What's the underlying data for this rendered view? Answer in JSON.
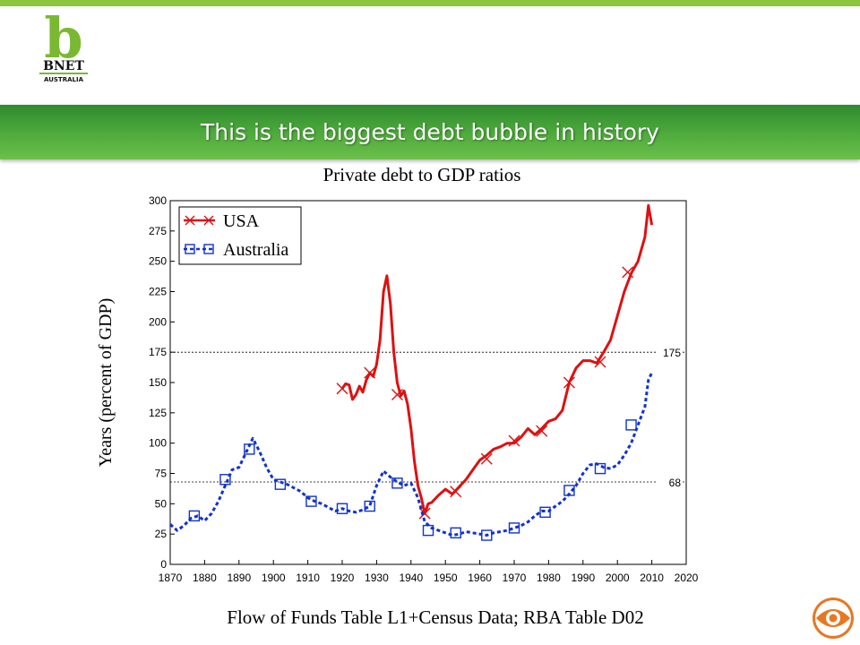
{
  "header": {
    "logo_letter": "b",
    "logo_name": "BNET",
    "logo_sub": "AUSTRALIA",
    "title": "This is the biggest debt bubble in history"
  },
  "colors": {
    "usa": "#dd1111",
    "australia": "#1133cc",
    "banner": "#4aa63a",
    "accent": "#8cc63f",
    "cbs": "#e87722"
  },
  "icons": {
    "bottom_right": "cbs-eye-icon"
  },
  "chart_data": {
    "type": "line",
    "title": "Private debt to GDP ratios",
    "xlabel": "Flow of Funds Table L1+Census Data; RBA Table D02",
    "ylabel": "Years (percent of GDP)",
    "xlim": [
      1870,
      2020
    ],
    "ylim": [
      0,
      300
    ],
    "grid": false,
    "legend_position": "top-left",
    "x_ticks": [
      "1870",
      "1880",
      "1890",
      "1900",
      "1910",
      "1920",
      "1930",
      "1940",
      "1950",
      "1960",
      "1970",
      "1980",
      "1990",
      "2000",
      "2010",
      "2020"
    ],
    "y_ticks": [
      "0",
      "25",
      "50",
      "75",
      "100",
      "125",
      "150",
      "175",
      "200",
      "225",
      "250",
      "275",
      "300"
    ],
    "reference_lines": [
      {
        "value": 175,
        "label": "175"
      },
      {
        "value": 68,
        "label": "68"
      }
    ],
    "series": [
      {
        "name": "USA",
        "style": "solid",
        "marker": "x",
        "x": [
          1920,
          1921,
          1922,
          1923,
          1924,
          1925,
          1926,
          1927,
          1928,
          1929,
          1930,
          1931,
          1932,
          1933,
          1934,
          1935,
          1936,
          1937,
          1938,
          1939,
          1940,
          1941,
          1942,
          1943,
          1944,
          1945,
          1946,
          1948,
          1950,
          1952,
          1954,
          1956,
          1958,
          1960,
          1962,
          1964,
          1966,
          1968,
          1970,
          1972,
          1974,
          1976,
          1978,
          1980,
          1982,
          1984,
          1986,
          1988,
          1990,
          1992,
          1994,
          1996,
          1998,
          2000,
          2002,
          2004,
          2006,
          2008,
          2009,
          2010
        ],
        "values": [
          145,
          149,
          148,
          136,
          140,
          147,
          142,
          152,
          158,
          155,
          165,
          185,
          225,
          238,
          215,
          175,
          150,
          139,
          143,
          132,
          112,
          85,
          65,
          55,
          42,
          50,
          51,
          57,
          62,
          58,
          64,
          70,
          78,
          86,
          90,
          95,
          97,
          100,
          100,
          105,
          112,
          107,
          112,
          118,
          120,
          127,
          150,
          162,
          168,
          168,
          166,
          175,
          185,
          205,
          225,
          240,
          250,
          270,
          296,
          280
        ],
        "marker_x": [
          1920,
          1928,
          1936,
          1944,
          1953,
          1962,
          1970,
          1978,
          1986,
          1995,
          2003
        ],
        "marker_values": [
          145,
          158,
          140,
          42,
          60,
          87,
          102,
          110,
          150,
          167,
          241
        ]
      },
      {
        "name": "Australia",
        "style": "dashed",
        "marker": "square",
        "x": [
          1870,
          1872,
          1874,
          1876,
          1878,
          1880,
          1882,
          1884,
          1886,
          1888,
          1890,
          1892,
          1894,
          1896,
          1898,
          1900,
          1902,
          1904,
          1906,
          1908,
          1910,
          1912,
          1914,
          1916,
          1918,
          1920,
          1922,
          1924,
          1926,
          1928,
          1930,
          1932,
          1934,
          1936,
          1938,
          1940,
          1942,
          1944,
          1946,
          1948,
          1950,
          1952,
          1954,
          1956,
          1958,
          1960,
          1962,
          1964,
          1966,
          1968,
          1970,
          1972,
          1974,
          1976,
          1978,
          1980,
          1982,
          1984,
          1986,
          1988,
          1990,
          1992,
          1994,
          1996,
          1998,
          2000,
          2002,
          2004,
          2006,
          2008,
          2009,
          2010
        ],
        "values": [
          33,
          28,
          32,
          38,
          40,
          36,
          42,
          52,
          65,
          78,
          80,
          92,
          104,
          93,
          80,
          70,
          68,
          66,
          63,
          60,
          55,
          52,
          50,
          47,
          44,
          46,
          44,
          43,
          45,
          48,
          65,
          77,
          72,
          68,
          65,
          67,
          55,
          35,
          30,
          28,
          26,
          24,
          25,
          27,
          26,
          25,
          24,
          26,
          27,
          28,
          30,
          32,
          35,
          40,
          44,
          44,
          48,
          52,
          58,
          65,
          75,
          82,
          83,
          80,
          79,
          82,
          90,
          100,
          115,
          130,
          152,
          158
        ],
        "marker_x": [
          1877,
          1886,
          1893,
          1902,
          1911,
          1920,
          1928,
          1936,
          1945,
          1953,
          1962,
          1970,
          1979,
          1986,
          1995,
          2004
        ],
        "marker_values": [
          40,
          70,
          95,
          66,
          52,
          46,
          48,
          67,
          28,
          26,
          24,
          30,
          43,
          61,
          79,
          115
        ]
      }
    ]
  }
}
